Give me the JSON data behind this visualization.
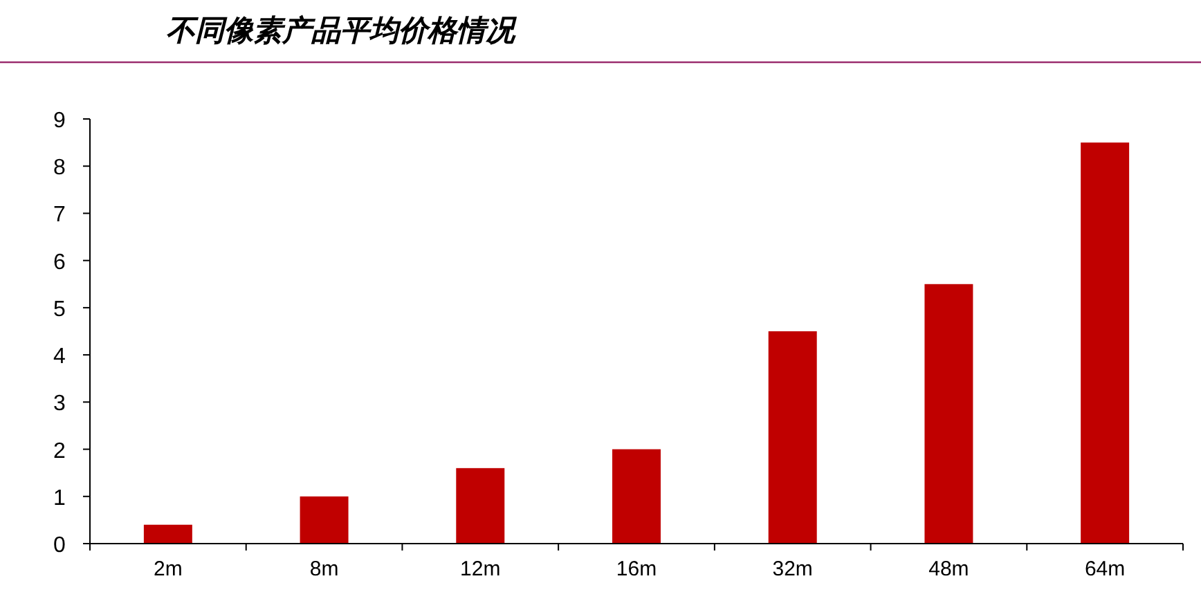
{
  "chart_data": {
    "type": "bar",
    "title": "不同像素产品平均价格情况",
    "categories": [
      "2m",
      "8m",
      "12m",
      "16m",
      "32m",
      "48m",
      "64m"
    ],
    "values": [
      0.4,
      1.0,
      1.6,
      2.0,
      4.5,
      5.5,
      8.5
    ],
    "color": "#c00000",
    "ylim": [
      0,
      9
    ],
    "yticks": [
      0,
      1,
      2,
      3,
      4,
      5,
      6,
      7,
      8,
      9
    ],
    "grid": false
  }
}
